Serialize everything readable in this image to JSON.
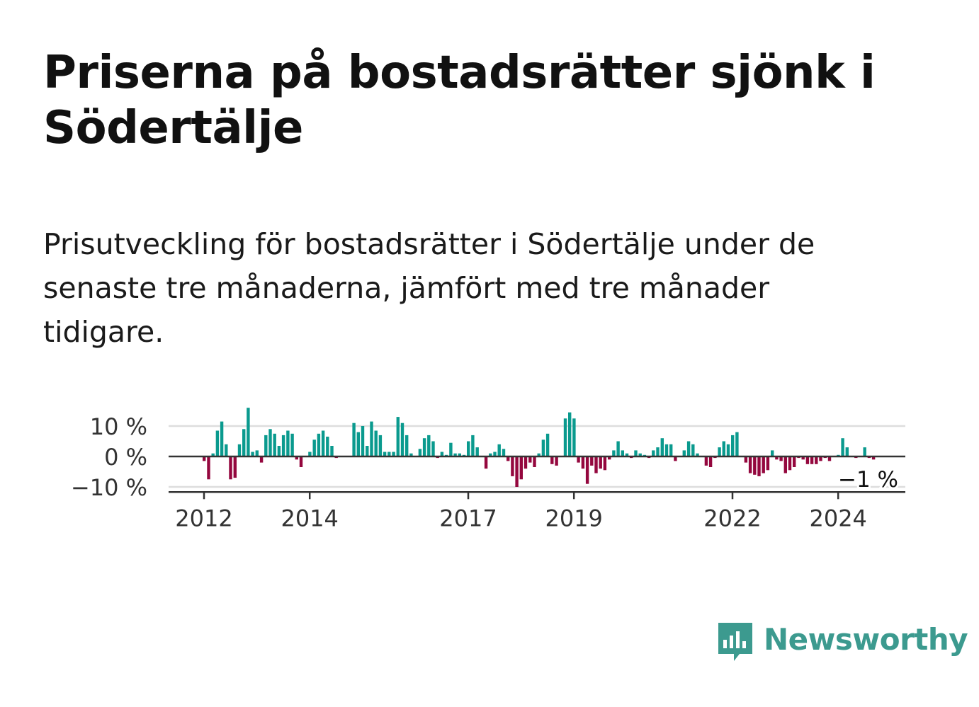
{
  "title": "Priserna på bostadsrätter sjönk i Södertälje",
  "subtitle": "Prisutveckling för bostadsrätter i Södertälje under de senaste tre månaderna, jämfört med tre månader tidigare.",
  "brand": {
    "name": "Newsworthy",
    "color": "#3c9a8f"
  },
  "colors": {
    "positive": "#0a9a8e",
    "negative": "#94073e",
    "grid": "#dddddd",
    "axis": "#333333"
  },
  "chart_data": {
    "type": "bar",
    "title": "",
    "xlabel": "",
    "ylabel": "",
    "unit": "%",
    "ylim": [
      -11,
      13
    ],
    "y_ticks": [
      10,
      0,
      -10
    ],
    "y_tick_labels": [
      "10 %",
      "0 %",
      "−10 %"
    ],
    "x_tick_labels": [
      "2012",
      "2014",
      "2017",
      "2019",
      "2022",
      "2024"
    ],
    "x_tick_dates": [
      2012.0,
      2014.0,
      2017.0,
      2019.0,
      2022.0,
      2024.0
    ],
    "x_start": 2011.42,
    "x_step": 0.08333,
    "last_value_label": "−1 %",
    "values": [
      0,
      0,
      0,
      0,
      0,
      0,
      0,
      -1.5,
      -7.5,
      1.0,
      8.5,
      11.5,
      4.0,
      -7.5,
      -7.0,
      4.0,
      9.0,
      16.0,
      1.5,
      2.0,
      -2.0,
      7.0,
      9.0,
      7.5,
      3.5,
      7.0,
      8.5,
      7.5,
      -1.0,
      -3.5,
      0,
      1.5,
      5.5,
      7.5,
      8.5,
      6.5,
      3.5,
      -0.5,
      0,
      0,
      0,
      11.0,
      8.0,
      10.0,
      3.5,
      11.5,
      8.5,
      7.0,
      1.5,
      1.5,
      1.5,
      13.0,
      11.0,
      7.0,
      1.0,
      0,
      2.5,
      6.0,
      7.0,
      5.0,
      -0.5,
      1.5,
      0.5,
      4.5,
      1.0,
      1.0,
      0.5,
      5.0,
      7.0,
      3.0,
      0,
      -4.0,
      1.0,
      1.5,
      4.0,
      2.5,
      -1.5,
      -6.5,
      -10.0,
      -7.5,
      -4.0,
      -2.0,
      -3.5,
      1.0,
      5.5,
      7.5,
      -2.5,
      -3.0,
      0,
      12.5,
      14.5,
      12.5,
      -2.0,
      -4.0,
      -9.0,
      -3.0,
      -5.5,
      -4.0,
      -4.5,
      -1.0,
      2.0,
      5.0,
      2.0,
      1.0,
      -0.5,
      2.0,
      1.0,
      0.5,
      -0.5,
      2.0,
      3.0,
      6.0,
      4.0,
      4.0,
      -1.5,
      0,
      2.0,
      5.0,
      4.0,
      1.0,
      0,
      -3.0,
      -3.5,
      -0.5,
      3.0,
      5.0,
      4.0,
      7.0,
      8.0,
      0,
      -2.0,
      -5.5,
      -6.0,
      -6.5,
      -5.5,
      -4.5,
      2.0,
      -1.0,
      -1.5,
      -5.5,
      -4.5,
      -3.5,
      -0.5,
      -1.0,
      -2.5,
      -2.5,
      -2.5,
      -1.5,
      -0.5,
      -1.5,
      0,
      0.5,
      6.0,
      3.0,
      0,
      -0.5,
      0,
      3.0,
      -0.5,
      -1.0
    ]
  }
}
